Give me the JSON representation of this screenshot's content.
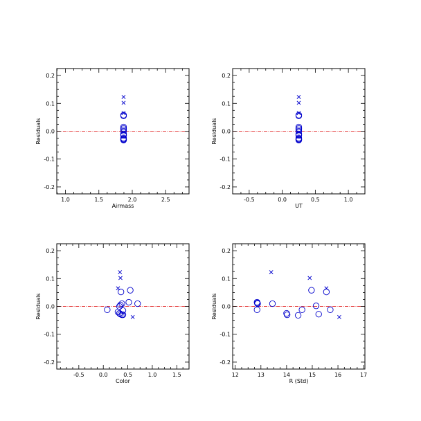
{
  "colors": {
    "marker": "#0000cc",
    "zero_line": "#dd0000",
    "axis": "#000000"
  },
  "chart_data": [
    {
      "type": "scatter",
      "xlabel": "Airmass",
      "ylabel": "Residuals",
      "xlim": [
        0.87,
        2.85
      ],
      "ylim": [
        -0.225,
        0.225
      ],
      "xticks": [
        1.0,
        1.5,
        2.0,
        2.5
      ],
      "xtick_labels": [
        "1.0",
        "1.5",
        "2.0",
        "2.5"
      ],
      "yticks": [
        -0.2,
        -0.1,
        0.0,
        0.1,
        0.2
      ],
      "ytick_labels": [
        "-0.2",
        "-0.1",
        "0.0",
        "0.1",
        "0.2"
      ],
      "reference_line": 0.0,
      "series": [
        {
          "marker": "circle",
          "x": [
            1.87,
            1.87,
            1.87,
            1.87,
            1.87,
            1.87,
            1.87,
            1.87,
            1.87,
            1.87,
            1.87,
            1.87,
            1.87,
            1.87
          ],
          "y": [
            0.058,
            0.055,
            0.015,
            0.01,
            0.005,
            0.0,
            -0.01,
            -0.012,
            -0.015,
            -0.025,
            -0.028,
            -0.03,
            -0.032,
            -0.03
          ]
        },
        {
          "marker": "x",
          "x": [
            1.87,
            1.87,
            1.87
          ],
          "y": [
            0.123,
            0.102,
            0.065
          ]
        }
      ]
    },
    {
      "type": "scatter",
      "xlabel": "UT",
      "ylabel": "Residuals",
      "xlim": [
        -0.75,
        1.25
      ],
      "ylim": [
        -0.225,
        0.225
      ],
      "xticks": [
        -0.5,
        0.0,
        0.5,
        1.0
      ],
      "xtick_labels": [
        "-0.5",
        "0.0",
        "0.5",
        "1.0"
      ],
      "yticks": [
        -0.2,
        -0.1,
        0.0,
        0.1,
        0.2
      ],
      "ytick_labels": [
        "-0.2",
        "-0.1",
        "0.0",
        "0.1",
        "0.2"
      ],
      "reference_line": 0.0,
      "series": [
        {
          "marker": "circle",
          "x": [
            0.25,
            0.25,
            0.25,
            0.25,
            0.25,
            0.25,
            0.25,
            0.25,
            0.25,
            0.25,
            0.25,
            0.25,
            0.25,
            0.25
          ],
          "y": [
            0.058,
            0.055,
            0.015,
            0.01,
            0.005,
            0.0,
            -0.01,
            -0.012,
            -0.015,
            -0.025,
            -0.028,
            -0.03,
            -0.032,
            -0.03
          ]
        },
        {
          "marker": "x",
          "x": [
            0.25,
            0.25,
            0.25
          ],
          "y": [
            0.123,
            0.102,
            0.065
          ]
        }
      ]
    },
    {
      "type": "scatter",
      "xlabel": "Color",
      "ylabel": "Residuals",
      "xlim": [
        -0.95,
        1.75
      ],
      "ylim": [
        -0.225,
        0.225
      ],
      "xticks": [
        -0.5,
        0.0,
        0.5,
        1.0,
        1.5
      ],
      "xtick_labels": [
        "-0.5",
        "0.0",
        "0.5",
        "1.0",
        "1.5"
      ],
      "yticks": [
        -0.2,
        -0.1,
        0.0,
        0.1,
        0.2
      ],
      "ytick_labels": [
        "-0.2",
        "-0.1",
        "0.0",
        "0.1",
        "0.2"
      ],
      "reference_line": 0.0,
      "series": [
        {
          "marker": "circle",
          "x": [
            0.08,
            0.3,
            0.35,
            0.38,
            0.33,
            0.4,
            0.52,
            0.55,
            0.7,
            0.33,
            0.4,
            0.38,
            0.36,
            0.35
          ],
          "y": [
            -0.012,
            -0.02,
            0.005,
            0.01,
            -0.025,
            -0.015,
            0.015,
            0.058,
            0.01,
            0.0,
            -0.03,
            -0.03,
            0.052,
            -0.028
          ]
        },
        {
          "marker": "x",
          "x": [
            0.34,
            0.35,
            0.3,
            0.6
          ],
          "y": [
            0.123,
            0.102,
            0.065,
            -0.038
          ]
        }
      ]
    },
    {
      "type": "scatter",
      "xlabel": "R (Std)",
      "ylabel": "Residuals",
      "xlim": [
        11.9,
        17.05
      ],
      "ylim": [
        -0.225,
        0.225
      ],
      "xticks": [
        12,
        13,
        14,
        15,
        16,
        17
      ],
      "xtick_labels": [
        "12",
        "13",
        "14",
        "15",
        "16",
        "17"
      ],
      "yticks": [
        -0.2,
        -0.1,
        0.0,
        0.1,
        0.2
      ],
      "ytick_labels": [
        "-0.2",
        "-0.1",
        "0.0",
        "0.1",
        "0.2"
      ],
      "reference_line": 0.0,
      "series": [
        {
          "marker": "circle",
          "x": [
            12.85,
            12.87,
            12.85,
            13.45,
            14.0,
            14.02,
            14.45,
            14.6,
            14.97,
            15.15,
            15.25,
            15.55,
            15.7,
            12.86
          ],
          "y": [
            0.015,
            0.01,
            -0.012,
            0.01,
            -0.025,
            -0.03,
            -0.032,
            -0.012,
            0.058,
            0.002,
            -0.028,
            0.052,
            -0.012,
            0.012
          ]
        },
        {
          "marker": "x",
          "x": [
            13.4,
            14.9,
            15.55,
            16.05
          ],
          "y": [
            0.123,
            0.102,
            0.065,
            -0.038
          ]
        }
      ]
    }
  ]
}
